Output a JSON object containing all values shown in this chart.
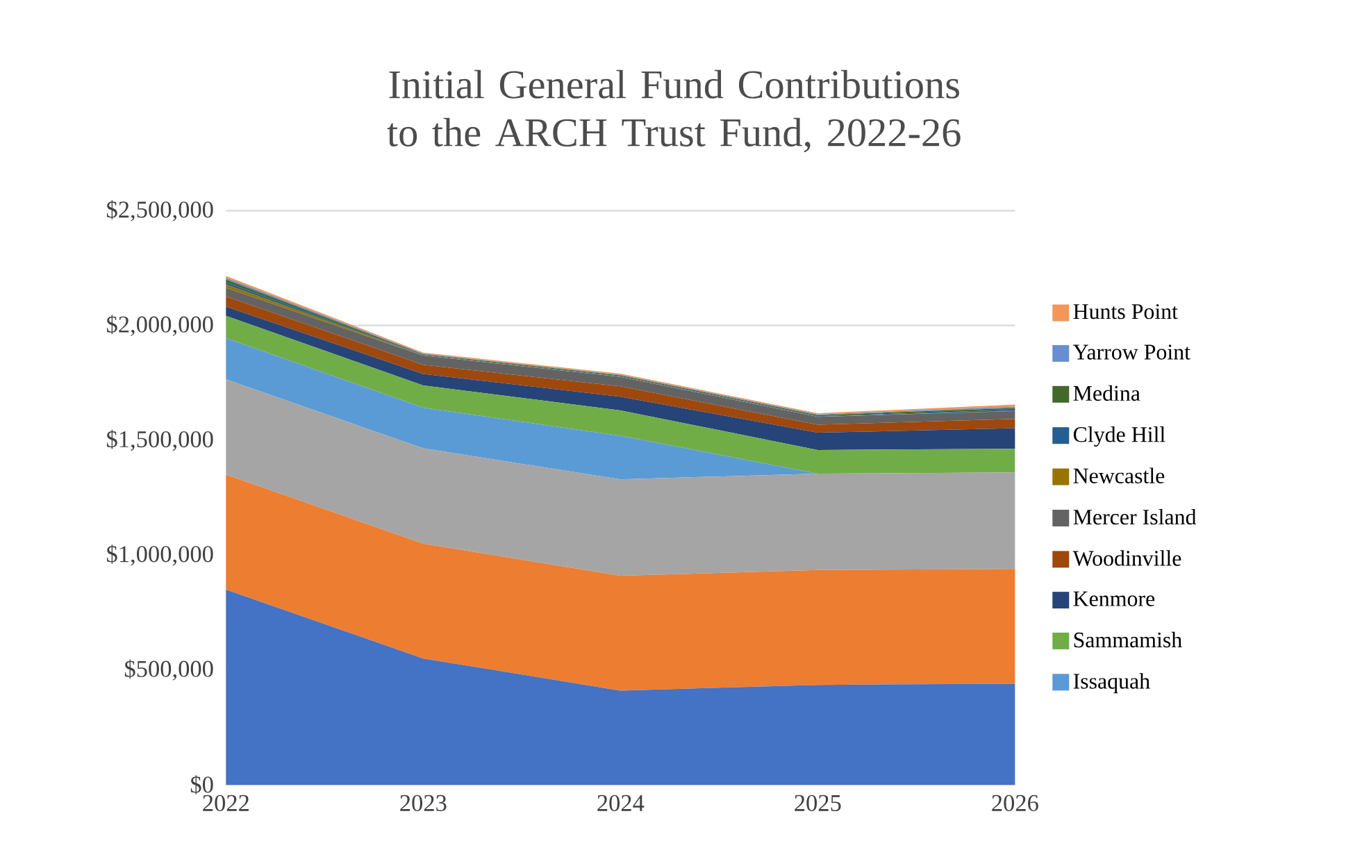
{
  "chart_data": {
    "type": "area",
    "stacked": true,
    "title": "Initial General Fund Contributions to the ARCH Trust Fund, 2022-26",
    "x": [
      2022,
      2023,
      2024,
      2025,
      2026
    ],
    "xlim": [
      2022,
      2026
    ],
    "xticks": [
      2022,
      2023,
      2024,
      2025,
      2026
    ],
    "ylim": [
      0,
      2500000
    ],
    "yticks": [
      {
        "value": 0,
        "label": "$0"
      },
      {
        "value": 500000,
        "label": "$500,000"
      },
      {
        "value": 1000000,
        "label": "$1,000,000"
      },
      {
        "value": 1500000,
        "label": "$1,500,000"
      },
      {
        "value": 2000000,
        "label": "$2,000,000"
      },
      {
        "value": 2500000,
        "label": "$2,500,000"
      }
    ],
    "grid": "y",
    "legend": "right",
    "series": [
      {
        "color": "#4472c4",
        "values": [
          850000,
          550000,
          410000,
          435000,
          440000
        ]
      },
      {
        "color": "#ed7d31",
        "values": [
          500000,
          500000,
          500000,
          500000,
          500000
        ]
      },
      {
        "color": "#a5a5a5",
        "values": [
          415000,
          415000,
          420000,
          420000,
          420000
        ]
      },
      {
        "name": "Issaquah",
        "color": "#5b9bd5",
        "values": [
          180000,
          177000,
          190000,
          0,
          0
        ]
      },
      {
        "name": "Sammamish",
        "color": "#70ad47",
        "values": [
          97000,
          97000,
          110000,
          103000,
          103000
        ]
      },
      {
        "name": "Kenmore",
        "color": "#264478",
        "values": [
          40000,
          50000,
          60000,
          75000,
          90000
        ]
      },
      {
        "name": "Woodinville",
        "color": "#9e480e",
        "values": [
          45000,
          40000,
          45000,
          35000,
          40000
        ]
      },
      {
        "name": "Mercer Island",
        "color": "#636363",
        "values": [
          37000,
          40000,
          41000,
          34000,
          34000
        ]
      },
      {
        "name": "Newcastle",
        "color": "#997300",
        "values": [
          14000,
          1000,
          1000,
          1000,
          1000
        ]
      },
      {
        "name": "Clyde Hill",
        "color": "#255e91",
        "values": [
          10000,
          2000,
          2000,
          2000,
          5000
        ]
      },
      {
        "name": "Medina",
        "color": "#43682b",
        "values": [
          12000,
          3000,
          4000,
          5000,
          8000
        ]
      },
      {
        "name": "Yarrow Point",
        "color": "#698ed0",
        "values": [
          8000,
          2000,
          2000,
          3000,
          6000
        ]
      },
      {
        "name": "Hunts Point",
        "color": "#f1975a",
        "values": [
          8000,
          5000,
          5000,
          5000,
          9000
        ]
      }
    ]
  }
}
